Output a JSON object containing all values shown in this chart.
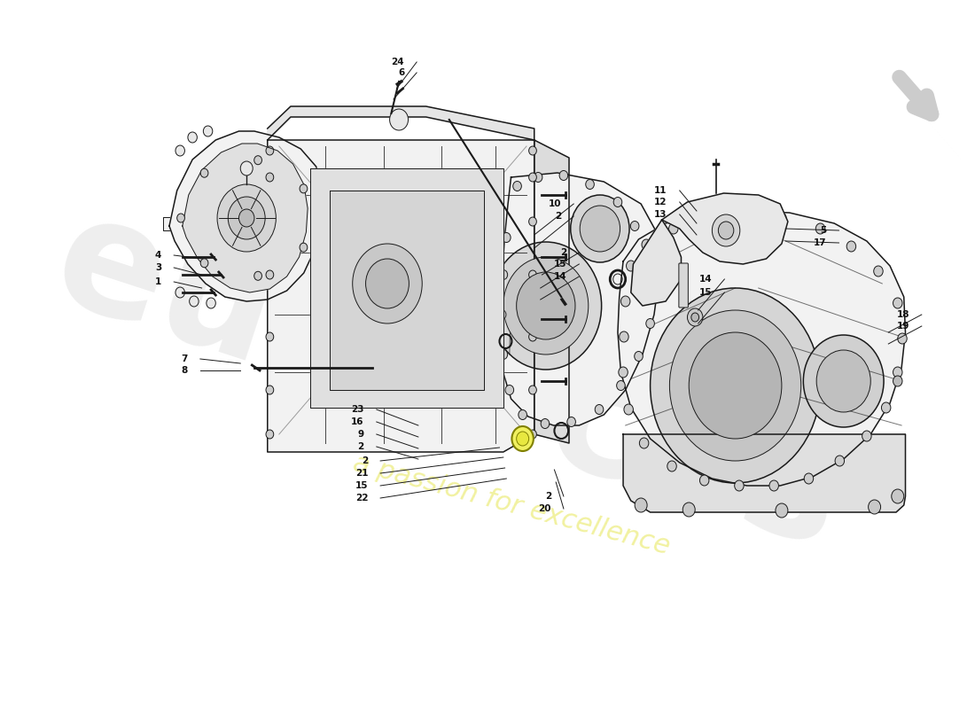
{
  "background_color": "#ffffff",
  "line_color": "#1a1a1a",
  "label_color": "#111111",
  "fill_light": "#f2f2f2",
  "fill_medium": "#e8e8e8",
  "fill_dark": "#d8d8d8",
  "fig_width": 11.0,
  "fig_height": 8.0,
  "lw_main": 1.1,
  "lw_thin": 0.7,
  "label_fontsize": 7.5,
  "watermark_color1": "#e0e0e0",
  "watermark_color2": "#f0f0c0",
  "watermark_alpha1": 0.55,
  "watermark_alpha2": 0.65
}
